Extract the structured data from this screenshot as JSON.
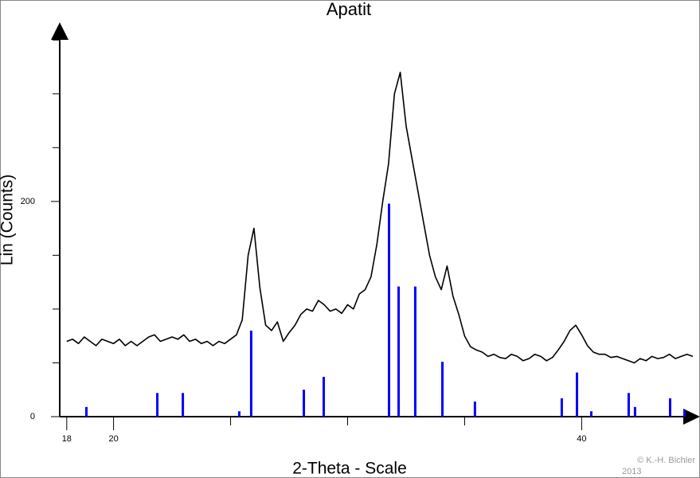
{
  "chart_data": {
    "type": "line",
    "title": "Apatit",
    "x_label": "2-Theta - Scale",
    "y_label": "Lin (Counts)",
    "credit": [
      "© K.-H. Bichler",
      "2013"
    ],
    "xlim": [
      17.7,
      44.75
    ],
    "ylim": [
      0,
      365
    ],
    "xticks": [
      18,
      20,
      40
    ],
    "xminor": [
      25,
      30,
      35
    ],
    "yticks": [
      0,
      200
    ],
    "yminor": [
      50,
      100,
      150,
      250,
      300,
      350
    ],
    "x": [
      18,
      18.25,
      18.5,
      18.75,
      19,
      19.25,
      19.5,
      19.75,
      20,
      20.25,
      20.5,
      20.75,
      21,
      21.25,
      21.5,
      21.75,
      22,
      22.25,
      22.5,
      22.75,
      23,
      23.25,
      23.5,
      23.75,
      24,
      24.25,
      24.5,
      24.75,
      25,
      25.25,
      25.5,
      25.75,
      26,
      26.25,
      26.5,
      26.75,
      27,
      27.25,
      27.5,
      27.75,
      28,
      28.25,
      28.5,
      28.75,
      29,
      29.25,
      29.5,
      29.75,
      30,
      30.25,
      30.5,
      30.75,
      31,
      31.25,
      31.5,
      31.75,
      32,
      32.25,
      32.5,
      32.75,
      33,
      33.25,
      33.5,
      33.75,
      34,
      34.25,
      34.5,
      34.75,
      35,
      35.25,
      35.5,
      35.75,
      36,
      36.25,
      36.5,
      36.75,
      37,
      37.25,
      37.5,
      37.75,
      38,
      38.25,
      38.5,
      38.75,
      39,
      39.25,
      39.5,
      39.75,
      40,
      40.25,
      40.5,
      40.75,
      41,
      41.25,
      41.5,
      41.75,
      42,
      42.25,
      42.5,
      42.75,
      43,
      43.25,
      43.5,
      43.75,
      44,
      44.25,
      44.5,
      44.75
    ],
    "series": [
      {
        "color": "#000000",
        "values": [
          70,
          72,
          68,
          74,
          70,
          66,
          72,
          70,
          68,
          72,
          66,
          70,
          66,
          70,
          74,
          76,
          70,
          72,
          74,
          72,
          76,
          70,
          72,
          68,
          70,
          66,
          70,
          68,
          72,
          76,
          90,
          150,
          175,
          120,
          85,
          80,
          88,
          70,
          78,
          85,
          95,
          100,
          98,
          108,
          104,
          98,
          100,
          96,
          104,
          100,
          114,
          118,
          130,
          160,
          200,
          235,
          300,
          320,
          270,
          240,
          210,
          180,
          150,
          130,
          118,
          140,
          112,
          95,
          75,
          65,
          62,
          60,
          56,
          58,
          55,
          54,
          58,
          56,
          52,
          54,
          58,
          56,
          52,
          55,
          62,
          70,
          80,
          85,
          76,
          66,
          60,
          58,
          58,
          55,
          56,
          54,
          52,
          50,
          54,
          52,
          56,
          54,
          55,
          58,
          54,
          56,
          58,
          56
        ]
      }
    ],
    "sticks": {
      "color": "#0000ff",
      "x": [
        18.84,
        21.87,
        22.96,
        25.37,
        25.88,
        28.13,
        28.98,
        31.77,
        32.18,
        32.89,
        34.05,
        35.44,
        39.15,
        39.8,
        40.41,
        42.01,
        42.28,
        43.78,
        44.39
      ],
      "values": [
        9,
        22,
        22,
        5,
        80,
        25,
        37,
        198,
        121,
        121,
        51,
        14,
        17,
        41,
        5,
        22,
        9,
        17,
        6
      ]
    }
  }
}
